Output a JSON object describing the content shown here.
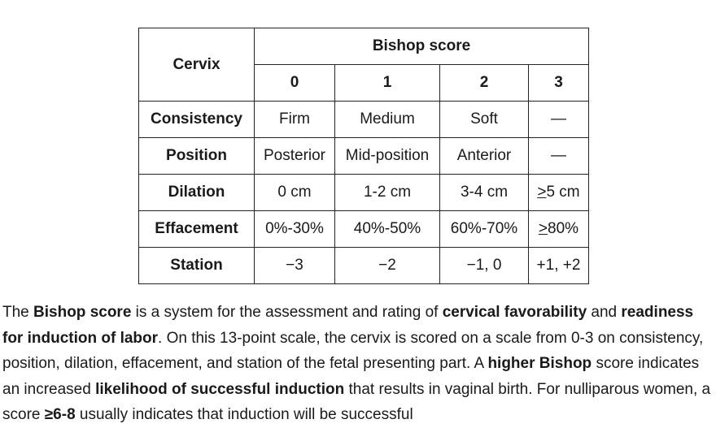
{
  "table": {
    "corner_label": "Cervix",
    "group_header": "Bishop score",
    "score_headers": [
      "0",
      "1",
      "2",
      "3"
    ],
    "rows": [
      {
        "label": "Consistency",
        "cells": [
          "Firm",
          "Medium",
          "Soft",
          "—"
        ]
      },
      {
        "label": "Position",
        "cells": [
          "Posterior",
          "Mid-position",
          "Anterior",
          "—"
        ]
      },
      {
        "label": "Dilation",
        "cells": [
          "0 cm",
          "1-2 cm",
          "3-4 cm",
          "5 cm"
        ]
      },
      {
        "label": "Effacement",
        "cells": [
          "0%-30%",
          "40%-50%",
          "60%-70%",
          "80%"
        ]
      },
      {
        "label": "Station",
        "cells": [
          "−3",
          "−2",
          "−1, 0",
          "+1, +2"
        ]
      }
    ],
    "ge_symbol": ">"
  },
  "paragraph": {
    "s1": "The ",
    "b1": "Bishop score",
    "s2": " is a system for the assessment and rating of ",
    "b2": "cervical favorability",
    "s3": " and ",
    "b3": "readiness for induction of labor",
    "s4": ".  On this 13-point scale, the cervix is scored on a scale from 0-3 on consistency, position, dilation, effacement, and station of the fetal presenting part.  A ",
    "b4": "higher",
    "s5": " ",
    "b5": "Bishop",
    "s6": " score indicates an increased ",
    "b6": "likelihood of successful induction",
    "s7": " that results in vaginal birth.  For nulliparous women, a score ",
    "b7": "≥6-8",
    "s8": " usually indicates that induction will be successful"
  }
}
